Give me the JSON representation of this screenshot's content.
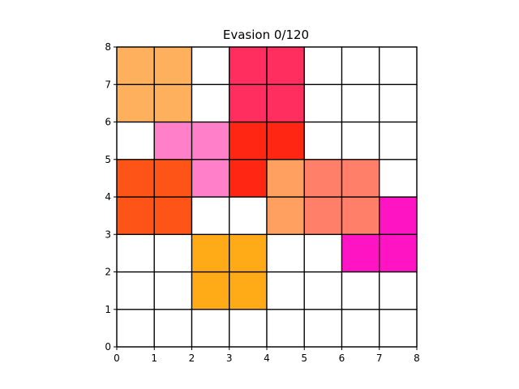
{
  "title": "Evasion 0/120",
  "board": {
    "cols": 8,
    "rows": 8,
    "x_ticks": [
      "0",
      "1",
      "2",
      "3",
      "4",
      "5",
      "6",
      "7",
      "8"
    ],
    "y_ticks": [
      "0",
      "1",
      "2",
      "3",
      "4",
      "5",
      "6",
      "7",
      "8"
    ],
    "grid_color": "#000000",
    "empty_color": "#ffffff"
  },
  "pieces": [
    {
      "id": "piece-peach",
      "color": "#ffb05c",
      "cells": [
        [
          0,
          7
        ],
        [
          1,
          7
        ],
        [
          0,
          6
        ],
        [
          1,
          6
        ]
      ]
    },
    {
      "id": "piece-rose",
      "color": "#ff2e5f",
      "cells": [
        [
          3,
          7
        ],
        [
          4,
          7
        ],
        [
          3,
          6
        ],
        [
          4,
          6
        ]
      ]
    },
    {
      "id": "piece-pink",
      "color": "#ff80c8",
      "cells": [
        [
          1,
          5
        ],
        [
          2,
          5
        ],
        [
          2,
          4
        ]
      ]
    },
    {
      "id": "piece-red",
      "color": "#ff2614",
      "cells": [
        [
          3,
          5
        ],
        [
          4,
          5
        ],
        [
          3,
          4
        ]
      ]
    },
    {
      "id": "piece-orangered",
      "color": "#ff5418",
      "cells": [
        [
          0,
          4
        ],
        [
          1,
          4
        ],
        [
          0,
          3
        ],
        [
          1,
          3
        ]
      ]
    },
    {
      "id": "piece-lightorange",
      "color": "#ffa060",
      "cells": [
        [
          4,
          4
        ],
        [
          4,
          3
        ]
      ]
    },
    {
      "id": "piece-salmon",
      "color": "#ff7f68",
      "cells": [
        [
          5,
          4
        ],
        [
          6,
          4
        ],
        [
          5,
          3
        ],
        [
          6,
          3
        ]
      ]
    },
    {
      "id": "piece-magenta",
      "color": "#ff14c4",
      "cells": [
        [
          7,
          3
        ],
        [
          6,
          2
        ],
        [
          7,
          2
        ]
      ]
    },
    {
      "id": "piece-amber",
      "color": "#ffaa16",
      "cells": [
        [
          2,
          2
        ],
        [
          3,
          2
        ],
        [
          2,
          1
        ],
        [
          3,
          1
        ]
      ]
    }
  ]
}
